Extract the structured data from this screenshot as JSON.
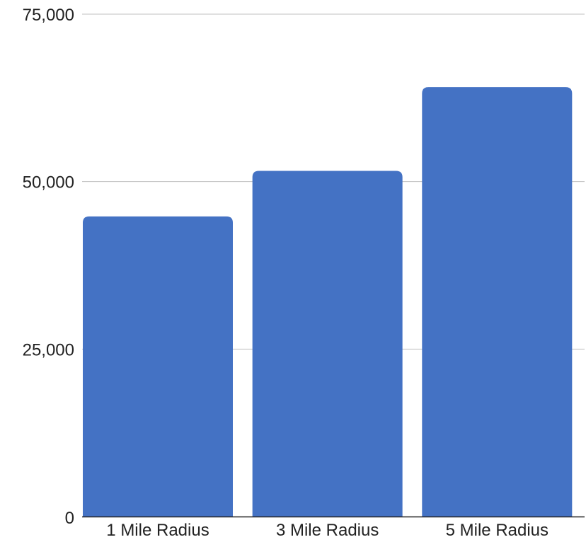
{
  "chart_data": {
    "type": "bar",
    "title": "",
    "xlabel": "",
    "ylabel": "",
    "categories": [
      "1 Mile Radius",
      "3 Mile Radius",
      "5 Mile Radius"
    ],
    "values": [
      44800,
      51600,
      64100
    ],
    "ylim": [
      0,
      75000
    ],
    "yticks": [
      0,
      25000,
      50000,
      75000
    ],
    "ytick_labels": [
      "0",
      "25,000",
      "50,000",
      "75,000"
    ],
    "grid": true,
    "legend": "none",
    "colors": {
      "bar": "#4472c4",
      "grid": "#c0c0c0",
      "axis": "#222222",
      "text": "#222222"
    }
  }
}
